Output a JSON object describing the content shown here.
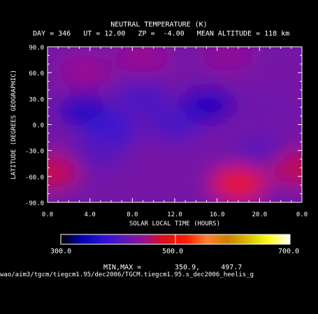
{
  "header": {
    "title": "NEUTRAL TEMPERATURE (K)",
    "subtitle": "DAY = 346   UT = 12.00   ZP =  -4.00   MEAN ALTITUDE = 118 km"
  },
  "colorbar": {
    "min_label": "300.0",
    "mid_label": "500.0",
    "max_label": "700.0",
    "min": 300,
    "max": 700,
    "stops": [
      "#000000",
      "#0000b0",
      "#2a10d8",
      "#5a18b8",
      "#9a1090",
      "#e01010",
      "#ff1a00",
      "#ff8030",
      "#cc8000",
      "#d8c000",
      "#ffff20",
      "#ffffff"
    ]
  },
  "footer": {
    "minmax_label": "MIN,MAX =",
    "minmax_values": "350.9,     497.7",
    "filepath": "wao/aim3/tgcm/tiegcm1.95/dec2006/TGCM.tiegcm1.95.s_dec2006_heelis_g"
  },
  "chart_data": {
    "type": "heatmap",
    "title": "NEUTRAL TEMPERATURE (K)",
    "xlabel": "SOLAR LOCAL TIME (HOURS)",
    "ylabel": "LATITUDE (DEGREES GEOGRAPHIC)",
    "xlim": [
      0,
      24
    ],
    "ylim": [
      -90,
      90
    ],
    "x_ticks": [
      "0.0",
      "4.0",
      "8.0",
      "12.0",
      "16.0",
      "20.0",
      "0.0"
    ],
    "x_tick_values": [
      0,
      4,
      8,
      12,
      16,
      20,
      24
    ],
    "y_ticks": [
      "90.0",
      "60.0",
      "30.0",
      "0.0",
      "-30.0",
      "-60.0",
      "-90.0"
    ],
    "y_tick_values": [
      90,
      60,
      30,
      0,
      -30,
      -60,
      -90
    ],
    "value_range": [
      350.9,
      497.7
    ],
    "features": [
      {
        "x": 3.5,
        "y": 15,
        "value": 352
      },
      {
        "x": 15,
        "y": 22,
        "value": 351
      },
      {
        "x": 3.5,
        "y": 62,
        "value": 445
      },
      {
        "x": 20,
        "y": 20,
        "value": 420
      },
      {
        "x": 18,
        "y": -68,
        "value": 497
      },
      {
        "x": 0.3,
        "y": -55,
        "value": 470
      },
      {
        "x": 23.5,
        "y": -50,
        "value": 468
      },
      {
        "x": 11,
        "y": -55,
        "value": 425
      },
      {
        "x": 9,
        "y": 78,
        "value": 445
      },
      {
        "x": 17,
        "y": 80,
        "value": 440
      },
      {
        "x": 6,
        "y": -5,
        "value": 380
      },
      {
        "x": 9,
        "y": 30,
        "value": 395
      },
      {
        "x": 20,
        "y": -30,
        "value": 410
      },
      {
        "x": 5,
        "y": -30,
        "value": 405
      },
      {
        "x": 12,
        "y": 0,
        "value": 395
      }
    ]
  }
}
